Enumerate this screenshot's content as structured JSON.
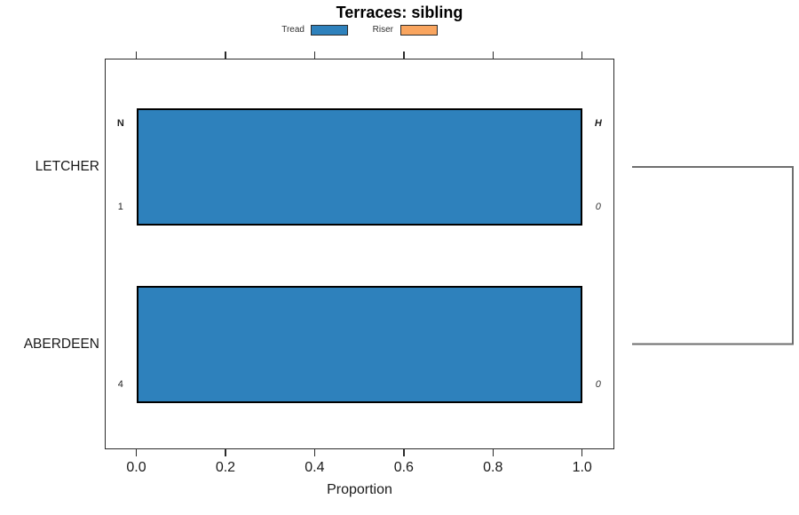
{
  "chart_data": {
    "type": "bar",
    "orientation": "horizontal",
    "title": "Terraces: sibling",
    "xlabel": "Proportion",
    "xlim": [
      0,
      1
    ],
    "xticks": [
      0.0,
      0.2,
      0.4,
      0.6,
      0.8,
      1.0
    ],
    "xtick_labels": [
      "0.0",
      "0.2",
      "0.4",
      "0.6",
      "0.8",
      "1.0"
    ],
    "categories": [
      "LETCHER",
      "ABERDEEN"
    ],
    "series": [
      {
        "name": "Tread",
        "color": "#2e81bc",
        "values": [
          1.0,
          1.0
        ]
      },
      {
        "name": "Riser",
        "color": "#f9a55f",
        "values": [
          0.0,
          0.0
        ]
      }
    ],
    "bar_annotations": [
      {
        "category": "LETCHER",
        "top_left": "N",
        "bottom_left": "1",
        "top_right": "H",
        "bottom_right": "0"
      },
      {
        "category": "ABERDEEN",
        "top_left": "",
        "bottom_left": "4",
        "top_right": "",
        "bottom_right": "0"
      }
    ],
    "legend_position": "top",
    "grid": false,
    "frame": true,
    "right_linkage": {
      "type": "bracket",
      "connects": [
        "LETCHER",
        "ABERDEEN"
      ],
      "color": "#6e6e6e"
    }
  }
}
